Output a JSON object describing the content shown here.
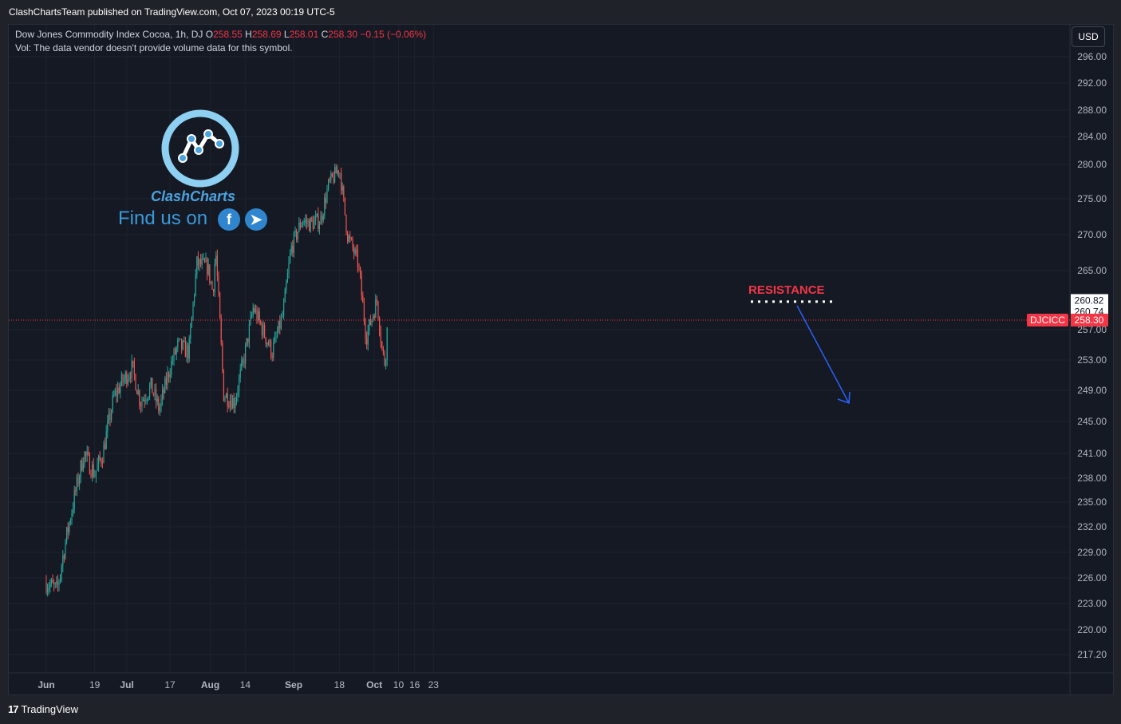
{
  "header": {
    "published_text": "ClashChartsTeam published on TradingView.com, Oct 07, 2023 00:19 UTC-5"
  },
  "legend": {
    "symbol_line": "Dow Jones Commodity Index Cocoa, 1h, DJ",
    "o_label": "O",
    "o_value": "258.55",
    "h_label": "H",
    "h_value": "258.69",
    "l_label": "L",
    "l_value": "258.01",
    "c_label": "C",
    "c_value": "258.30",
    "change": "−0.15 (−0.06%)",
    "volume_note": "Vol: The data vendor doesn't provide volume data for this symbol."
  },
  "currency_button": "USD",
  "branding": {
    "name": "ClashCharts",
    "find_us": "Find us on",
    "facebook_icon": "facebook-icon",
    "telegram_icon": "telegram-icon"
  },
  "annotation": {
    "resistance_label": "RESISTANCE"
  },
  "price_tags": {
    "symbol": "DJCICC",
    "last": "258.30",
    "level_a": "260.82",
    "level_b": "260.74"
  },
  "footer": {
    "brand": "TradingView"
  },
  "colors": {
    "up": "#26a69a",
    "down": "#ef5350",
    "resistance": "#f23645",
    "arrow": "#2962ff",
    "axis_text": "#b2b5be",
    "background": "#151924"
  },
  "chart_data": {
    "type": "candlestick",
    "title": "Dow Jones Commodity Index Cocoa, 1h, DJ",
    "y_ticks": [
      "296.00",
      "292.00",
      "288.00",
      "284.00",
      "280.00",
      "275.00",
      "270.00",
      "265.00",
      "257.00",
      "253.00",
      "249.00",
      "245.00",
      "241.00",
      "238.00",
      "235.00",
      "232.00",
      "229.00",
      "226.00",
      "223.00",
      "220.00",
      "217.20"
    ],
    "x_ticks": [
      "Jun",
      "19",
      "Jul",
      "17",
      "Aug",
      "14",
      "Sep",
      "18",
      "Oct",
      "10",
      "16",
      "23"
    ],
    "ylim": [
      216,
      298
    ],
    "close_path": [
      [
        "2023-06-01",
        225.5
      ],
      [
        "2023-06-05",
        224.5
      ],
      [
        "2023-06-08",
        230.0
      ],
      [
        "2023-06-12",
        236.5
      ],
      [
        "2023-06-15",
        241.0
      ],
      [
        "2023-06-19",
        238.5
      ],
      [
        "2023-06-22",
        241.0
      ],
      [
        "2023-06-26",
        248.0
      ],
      [
        "2023-06-29",
        250.0
      ],
      [
        "2023-07-03",
        252.0
      ],
      [
        "2023-07-06",
        247.5
      ],
      [
        "2023-07-10",
        249.5
      ],
      [
        "2023-07-13",
        246.5
      ],
      [
        "2023-07-17",
        252.0
      ],
      [
        "2023-07-20",
        255.0
      ],
      [
        "2023-07-24",
        254.0
      ],
      [
        "2023-07-27",
        266.0
      ],
      [
        "2023-07-31",
        265.5
      ],
      [
        "2023-08-02",
        262.0
      ],
      [
        "2023-08-03",
        268.0
      ],
      [
        "2023-08-06",
        248.5
      ],
      [
        "2023-08-10",
        247.5
      ],
      [
        "2023-08-14",
        254.0
      ],
      [
        "2023-08-17",
        260.0
      ],
      [
        "2023-08-21",
        256.5
      ],
      [
        "2023-08-24",
        254.0
      ],
      [
        "2023-08-28",
        259.0
      ],
      [
        "2023-08-31",
        268.0
      ],
      [
        "2023-09-04",
        272.0
      ],
      [
        "2023-09-07",
        271.5
      ],
      [
        "2023-09-11",
        272.0
      ],
      [
        "2023-09-14",
        277.0
      ],
      [
        "2023-09-18",
        279.5
      ],
      [
        "2023-09-21",
        270.0
      ],
      [
        "2023-09-25",
        266.0
      ],
      [
        "2023-09-28",
        256.0
      ],
      [
        "2023-10-02",
        261.0
      ],
      [
        "2023-10-04",
        254.0
      ],
      [
        "2023-10-05",
        252.5
      ],
      [
        "2023-10-06",
        258.3
      ]
    ],
    "resistance_level": 260.8,
    "current_price": 258.3
  }
}
